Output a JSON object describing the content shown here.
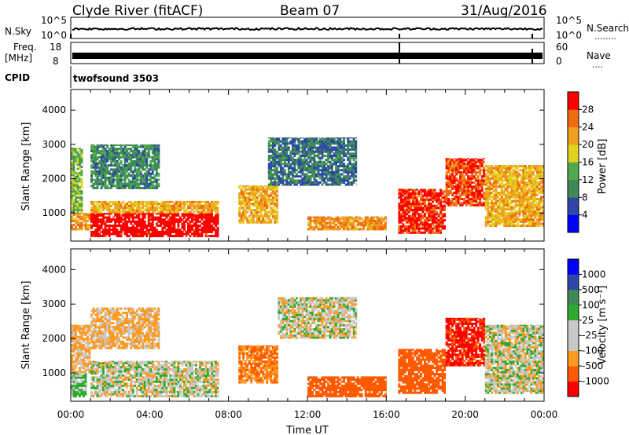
{
  "header": {
    "station": "Clyde River (fitACF)",
    "beam": "Beam 07",
    "date": "31/Aug/2016"
  },
  "nsky_panel": {
    "left_label": "N.Sky",
    "left_ticks": [
      "10^5",
      "10^0"
    ],
    "right_label": "N.Search",
    "right_dots": "........",
    "right_ticks": [
      "10^5",
      "10^0"
    ]
  },
  "freq_panel": {
    "left_label_1": "Freq.",
    "left_label_2": "[MHz]",
    "left_ticks": [
      "18",
      "8"
    ],
    "right_label": "Nave",
    "right_dots": "....",
    "right_ticks": [
      "60",
      "0"
    ]
  },
  "cpid_panel": {
    "left_label": "CPID",
    "program": "twofsound 3503"
  },
  "colors": {
    "power": [
      "#0000ff",
      "#2f48a8",
      "#3f8a54",
      "#4faa4f",
      "#e0d21e",
      "#f0a020",
      "#f06a10",
      "#ff0000"
    ],
    "velocity": [
      "#ff0000",
      "#ff5a00",
      "#ff9a20",
      "#c8c8c8",
      "#c8c8c8",
      "#2faa2f",
      "#3f8a54",
      "#2f48a8",
      "#0000ff"
    ]
  },
  "chart_data": [
    {
      "type": "heatmap",
      "name": "power",
      "xlabel": "",
      "ylabel": "Slant Range [km]",
      "xlim": [
        0,
        24
      ],
      "ylim": [
        180,
        4600
      ],
      "y_ticks": [
        "1000",
        "2000",
        "3000",
        "4000"
      ],
      "colorbar": {
        "label": "Power [dB]",
        "ticks": [
          "4",
          "8",
          "12",
          "16",
          "20",
          "24",
          "28"
        ],
        "range": [
          0,
          30
        ]
      },
      "regions": [
        {
          "t0": 0.0,
          "t1": 0.6,
          "r0": 1000,
          "r1": 2900,
          "dB": 14
        },
        {
          "t0": 0.0,
          "t1": 1.0,
          "r0": 500,
          "r1": 1000,
          "dB": 22
        },
        {
          "t0": 1.0,
          "t1": 7.5,
          "r0": 300,
          "r1": 1000,
          "dB": 30
        },
        {
          "t0": 1.0,
          "t1": 7.5,
          "r0": 1000,
          "r1": 1350,
          "dB": 20
        },
        {
          "t0": 1.0,
          "t1": 4.5,
          "r0": 1700,
          "r1": 3000,
          "dB": 10
        },
        {
          "t0": 8.5,
          "t1": 10.5,
          "r0": 700,
          "r1": 1800,
          "dB": 20
        },
        {
          "t0": 10.0,
          "t1": 14.5,
          "r0": 1800,
          "r1": 3200,
          "dB": 8
        },
        {
          "t0": 12.0,
          "t1": 16.0,
          "r0": 500,
          "r1": 900,
          "dB": 22
        },
        {
          "t0": 16.6,
          "t1": 19.0,
          "r0": 400,
          "r1": 1700,
          "dB": 27
        },
        {
          "t0": 19.0,
          "t1": 21.0,
          "r0": 1200,
          "r1": 2600,
          "dB": 26
        },
        {
          "t0": 21.0,
          "t1": 24.0,
          "r0": 600,
          "r1": 2400,
          "dB": 20
        }
      ]
    },
    {
      "type": "heatmap",
      "name": "velocity",
      "xlabel": "Time UT",
      "ylabel": "Slant Range [km]",
      "xlim": [
        0,
        24
      ],
      "ylim": [
        180,
        4600
      ],
      "x_ticks": [
        "00:00",
        "04:00",
        "08:00",
        "12:00",
        "16:00",
        "20:00",
        "00:00"
      ],
      "y_ticks": [
        "1000",
        "2000",
        "3000",
        "4000"
      ],
      "colorbar": {
        "label": "Velocity [m s⁻¹]",
        "ticks": [
          "1000",
          "500",
          "100",
          "25",
          "-25",
          "-100",
          "-500",
          "-1000"
        ]
      },
      "regions": [
        {
          "t0": 0.0,
          "t1": 0.8,
          "r0": 300,
          "r1": 1000,
          "vel": 100
        },
        {
          "t0": 0.0,
          "t1": 1.0,
          "r0": 1000,
          "r1": 2400,
          "vel": -100
        },
        {
          "t0": 1.0,
          "t1": 7.5,
          "r0": 300,
          "r1": 1350,
          "vel": 0
        },
        {
          "t0": 1.0,
          "t1": 4.5,
          "r0": 1700,
          "r1": 2900,
          "vel": -100
        },
        {
          "t0": 8.5,
          "t1": 10.5,
          "r0": 700,
          "r1": 1800,
          "vel": -300
        },
        {
          "t0": 10.5,
          "t1": 14.5,
          "r0": 2000,
          "r1": 3200,
          "vel": 0
        },
        {
          "t0": 12.0,
          "t1": 16.0,
          "r0": 300,
          "r1": 900,
          "vel": -500
        },
        {
          "t0": 16.6,
          "t1": 19.0,
          "r0": 400,
          "r1": 1700,
          "vel": -500
        },
        {
          "t0": 19.0,
          "t1": 21.0,
          "r0": 1200,
          "r1": 2600,
          "vel": -800
        },
        {
          "t0": 21.0,
          "t1": 24.0,
          "r0": 400,
          "r1": 2400,
          "vel": 0
        }
      ]
    }
  ]
}
